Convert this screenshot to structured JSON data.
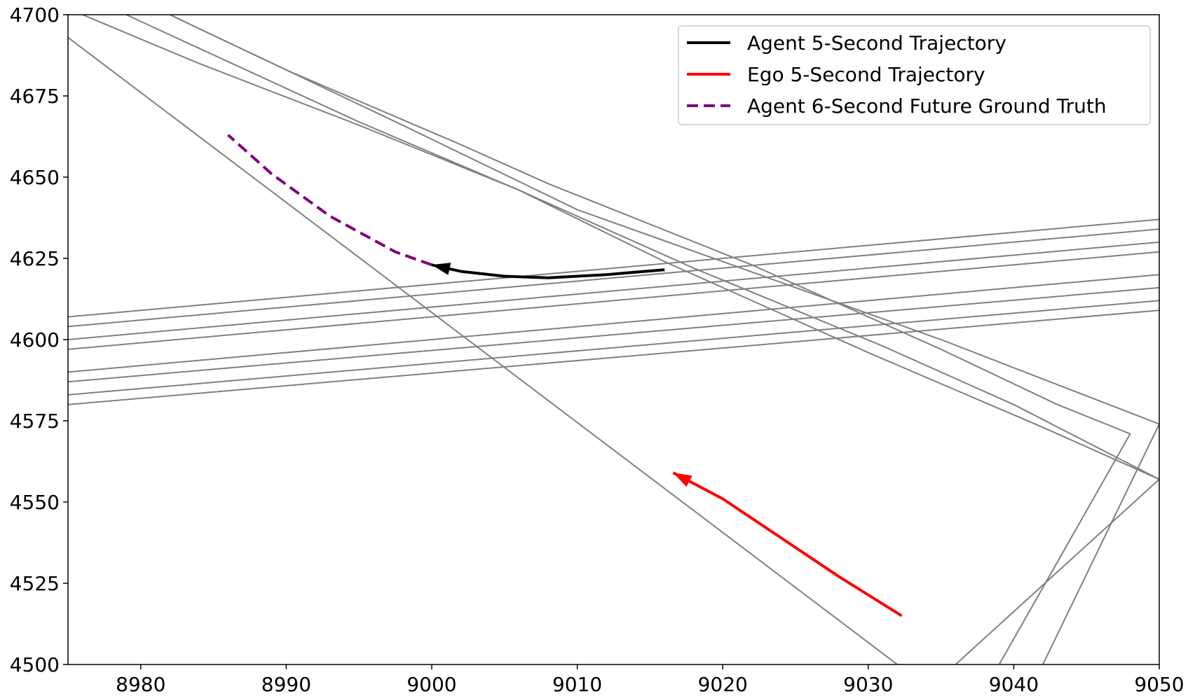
{
  "chart_data": {
    "type": "line",
    "title": "",
    "xlabel": "",
    "ylabel": "",
    "xlim": [
      8975,
      9050
    ],
    "ylim": [
      4500,
      4700
    ],
    "xticks": [
      8980,
      8990,
      9000,
      9010,
      9020,
      9030,
      9040,
      9050
    ],
    "yticks": [
      4500,
      4525,
      4550,
      4575,
      4600,
      4625,
      4650,
      4675,
      4700
    ],
    "grid": false,
    "legend_position": "top-right",
    "map_lines": {
      "color": "#808080",
      "lines": [
        [
          [
            8975,
            4693
          ],
          [
            9032,
            4500
          ]
        ],
        [
          [
            8976,
            4700
          ],
          [
            8984,
            4685
          ],
          [
            8995,
            4666
          ],
          [
            9006,
            4646
          ],
          [
            9016,
            4624
          ],
          [
            9030,
            4596
          ],
          [
            9042,
            4573
          ],
          [
            9050,
            4557
          ],
          [
            9036,
            4500
          ]
        ],
        [
          [
            8979,
            4700
          ],
          [
            8995,
            4667
          ],
          [
            9006,
            4646
          ],
          [
            9018,
            4622
          ],
          [
            9031,
            4598
          ],
          [
            9040,
            4580
          ],
          [
            9050,
            4557
          ]
        ],
        [
          [
            8982,
            4700
          ],
          [
            8990,
            4683
          ],
          [
            9002,
            4660
          ],
          [
            9008,
            4648
          ],
          [
            9022,
            4623
          ],
          [
            9035,
            4597
          ],
          [
            9043,
            4580
          ],
          [
            9048,
            4571
          ],
          [
            9039,
            4500
          ]
        ],
        [
          [
            8982,
            4700
          ],
          [
            8990,
            4683
          ],
          [
            8998,
            4666
          ],
          [
            9010,
            4640
          ],
          [
            9015,
            4632
          ],
          [
            9020,
            4624
          ],
          [
            9035,
            4600
          ],
          [
            9050,
            4574
          ],
          [
            9042,
            4500
          ]
        ],
        [
          [
            8975,
            4607
          ],
          [
            9050,
            4637
          ]
        ],
        [
          [
            8975,
            4604
          ],
          [
            9050,
            4634
          ]
        ],
        [
          [
            8975,
            4600
          ],
          [
            9050,
            4630
          ]
        ],
        [
          [
            8975,
            4597
          ],
          [
            9050,
            4627
          ]
        ],
        [
          [
            8975,
            4590
          ],
          [
            9050,
            4620
          ]
        ],
        [
          [
            8975,
            4587
          ],
          [
            9050,
            4616
          ]
        ],
        [
          [
            8975,
            4583
          ],
          [
            9050,
            4612
          ]
        ],
        [
          [
            8975,
            4580
          ],
          [
            9050,
            4609
          ]
        ]
      ]
    },
    "series": [
      {
        "name": "Agent 5-Second Trajectory",
        "color": "#000000",
        "style": "solid",
        "x": [
          9016,
          9012,
          9008,
          9005,
          9002,
          9000
        ],
        "y": [
          4621.5,
          4620,
          4619,
          4619.5,
          4621,
          4623
        ]
      },
      {
        "name": "Ego 5-Second Trajectory",
        "color": "#ff0000",
        "style": "solid",
        "x": [
          9032.3,
          9028,
          9024,
          9020,
          9016.6
        ],
        "y": [
          4515,
          4527,
          4539,
          4551,
          4559
        ]
      },
      {
        "name": "Agent 6-Second Future Ground Truth",
        "color": "#800080",
        "style": "dashed",
        "x": [
          9000,
          8997.5,
          8993,
          8989,
          8986
        ],
        "y": [
          4623,
          4627,
          4638,
          4651,
          4663
        ]
      }
    ]
  }
}
